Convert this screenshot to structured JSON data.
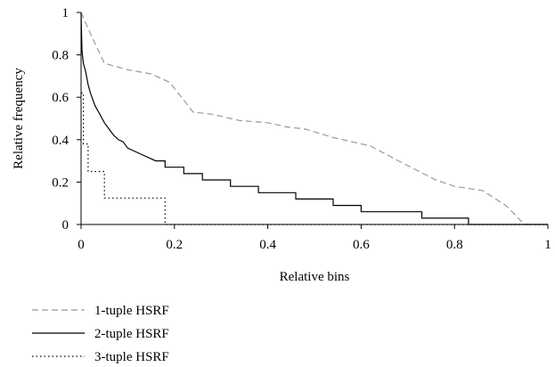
{
  "chart_data": {
    "type": "line",
    "xlabel": "Relative bins",
    "ylabel": "Relative frequency",
    "xlim": [
      0,
      1
    ],
    "ylim": [
      0,
      1
    ],
    "x_ticks": [
      "0",
      "0.2",
      "0.4",
      "0.6",
      "0.8",
      "1"
    ],
    "y_ticks": [
      "0",
      "0.2",
      "0.4",
      "0.6",
      "0.8",
      "1"
    ],
    "grid": false,
    "legend_position": "bottom-left",
    "series": [
      {
        "name": "1-tuple HSRF",
        "style": "dashed",
        "color": "#999999",
        "points": [
          [
            0,
            1.0
          ],
          [
            0.02,
            0.9
          ],
          [
            0.05,
            0.76
          ],
          [
            0.1,
            0.73
          ],
          [
            0.15,
            0.71
          ],
          [
            0.19,
            0.67
          ],
          [
            0.24,
            0.53
          ],
          [
            0.28,
            0.52
          ],
          [
            0.34,
            0.49
          ],
          [
            0.4,
            0.48
          ],
          [
            0.44,
            0.46
          ],
          [
            0.48,
            0.45
          ],
          [
            0.54,
            0.41
          ],
          [
            0.62,
            0.37
          ],
          [
            0.68,
            0.3
          ],
          [
            0.76,
            0.21
          ],
          [
            0.8,
            0.18
          ],
          [
            0.86,
            0.16
          ],
          [
            0.91,
            0.09
          ],
          [
            0.95,
            0.0
          ],
          [
            1.0,
            0.0
          ]
        ]
      },
      {
        "name": "2-tuple HSRF",
        "style": "solid",
        "color": "#000000",
        "points": [
          [
            0,
            1.0
          ],
          [
            0.002,
            0.82
          ],
          [
            0.005,
            0.76
          ],
          [
            0.01,
            0.72
          ],
          [
            0.015,
            0.66
          ],
          [
            0.02,
            0.62
          ],
          [
            0.03,
            0.56
          ],
          [
            0.04,
            0.52
          ],
          [
            0.05,
            0.48
          ],
          [
            0.06,
            0.45
          ],
          [
            0.07,
            0.42
          ],
          [
            0.08,
            0.4
          ],
          [
            0.09,
            0.39
          ],
          [
            0.1,
            0.36
          ],
          [
            0.13,
            0.33
          ],
          [
            0.16,
            0.3
          ],
          [
            0.18,
            0.3
          ],
          [
            0.18,
            0.27
          ],
          [
            0.22,
            0.27
          ],
          [
            0.22,
            0.24
          ],
          [
            0.26,
            0.24
          ],
          [
            0.26,
            0.21
          ],
          [
            0.32,
            0.21
          ],
          [
            0.32,
            0.18
          ],
          [
            0.38,
            0.18
          ],
          [
            0.38,
            0.15
          ],
          [
            0.46,
            0.15
          ],
          [
            0.46,
            0.12
          ],
          [
            0.54,
            0.12
          ],
          [
            0.54,
            0.09
          ],
          [
            0.6,
            0.09
          ],
          [
            0.6,
            0.06
          ],
          [
            0.73,
            0.06
          ],
          [
            0.73,
            0.03
          ],
          [
            0.83,
            0.03
          ],
          [
            0.83,
            0.0
          ],
          [
            1.0,
            0.0
          ]
        ]
      },
      {
        "name": "3-tuple HSRF",
        "style": "dotted",
        "color": "#000000",
        "points": [
          [
            0,
            0.62
          ],
          [
            0.005,
            0.62
          ],
          [
            0.005,
            0.38
          ],
          [
            0.015,
            0.38
          ],
          [
            0.015,
            0.25
          ],
          [
            0.05,
            0.25
          ],
          [
            0.05,
            0.125
          ],
          [
            0.18,
            0.125
          ],
          [
            0.18,
            0.0
          ],
          [
            1.0,
            0.0
          ]
        ]
      }
    ]
  }
}
